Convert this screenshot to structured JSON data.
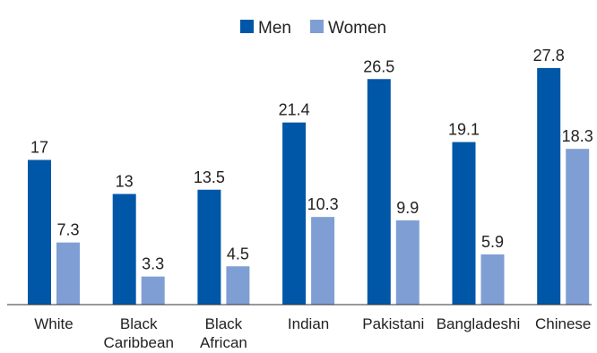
{
  "chart_data": {
    "type": "bar",
    "categories": [
      [
        "White"
      ],
      [
        "Black",
        "Caribbean"
      ],
      [
        "Black",
        "African"
      ],
      [
        "Indian"
      ],
      [
        "Pakistani"
      ],
      [
        "Bangladeshi"
      ],
      [
        "Chinese"
      ]
    ],
    "series": [
      {
        "name": "Men",
        "color": "#0057a8",
        "values": [
          17,
          13,
          13.5,
          21.4,
          26.5,
          19.1,
          27.8
        ],
        "labels": [
          "17",
          "13",
          "13.5",
          "21.4",
          "26.5",
          "19.1",
          "27.8"
        ]
      },
      {
        "name": "Women",
        "color": "#7f9fd4",
        "values": [
          7.3,
          3.3,
          4.5,
          10.3,
          9.9,
          5.9,
          18.3
        ],
        "labels": [
          "7.3",
          "3.3",
          "4.5",
          "10.3",
          "9.9",
          "5.9",
          "18.3"
        ]
      }
    ],
    "ylim": [
      0,
      30
    ],
    "legend": "top-center",
    "grid": false
  }
}
